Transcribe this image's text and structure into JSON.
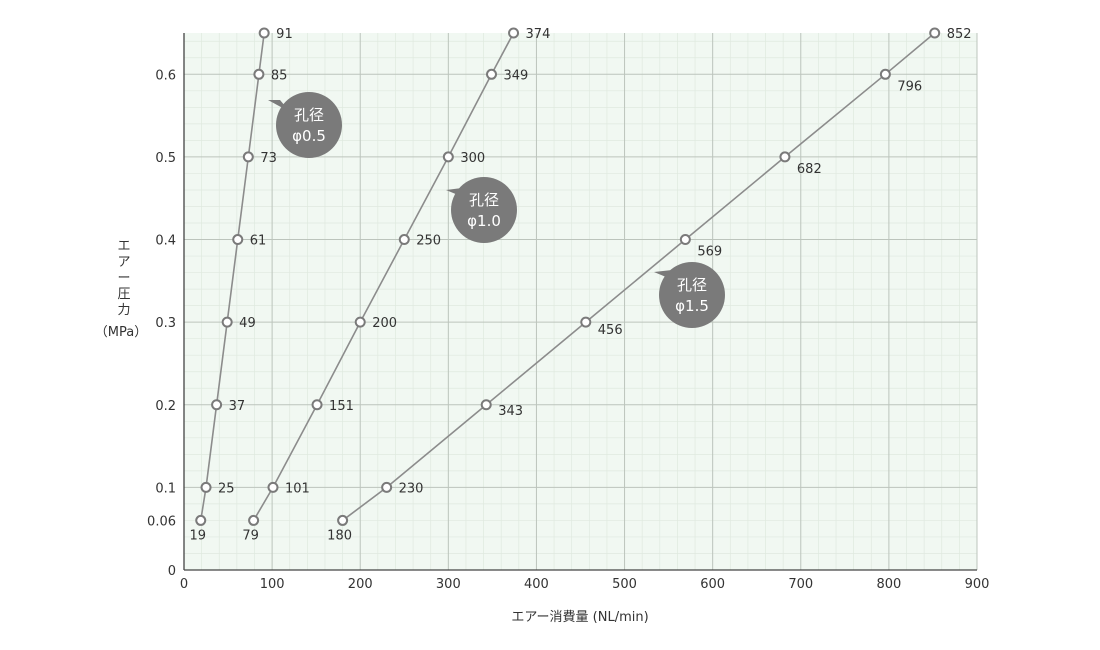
{
  "chart_data": {
    "type": "line",
    "xlabel": "エアー消費量 (NL/min)",
    "ylabel_main": "エアー圧力",
    "ylabel_unit": "（MPa）",
    "xlim": [
      0,
      900
    ],
    "ylim": [
      0,
      0.65
    ],
    "x_ticks": [
      0,
      100,
      200,
      300,
      400,
      500,
      600,
      700,
      800,
      900
    ],
    "y_ticks": [
      0,
      0.06,
      0.1,
      0.2,
      0.3,
      0.4,
      0.5,
      0.6
    ],
    "y_tick_labels": [
      "0",
      "0.06",
      "0.1",
      "0.2",
      "0.3",
      "0.4",
      "0.5",
      "0.6"
    ],
    "x_tick_labels": [
      "0",
      "100",
      "200",
      "300",
      "400",
      "500",
      "600",
      "700",
      "800",
      "900"
    ],
    "grid": true,
    "colors": {
      "line": "#8c8c8c",
      "marker_stroke": "#7a7a7a",
      "bubble": "#7a7a7a",
      "grid_major": "#bcc4bc",
      "grid_minor": "#dfe9df",
      "plot_bg": "#f1f8f2"
    },
    "series": [
      {
        "name": "孔径 φ0.5",
        "bubble_lines": [
          "孔径",
          "φ0.5"
        ],
        "y": [
          0.06,
          0.1,
          0.2,
          0.3,
          0.4,
          0.5,
          0.6,
          0.65
        ],
        "x": [
          19,
          25,
          37,
          49,
          61,
          73,
          85,
          91
        ],
        "labels": [
          "19",
          "25",
          "37",
          "49",
          "61",
          "73",
          "85",
          "91"
        ]
      },
      {
        "name": "孔径 φ1.0",
        "bubble_lines": [
          "孔径",
          "φ1.0"
        ],
        "y": [
          0.06,
          0.1,
          0.2,
          0.3,
          0.4,
          0.5,
          0.6,
          0.65
        ],
        "x": [
          79,
          101,
          151,
          200,
          250,
          300,
          349,
          374
        ],
        "labels": [
          "79",
          "101",
          "151",
          "200",
          "250",
          "300",
          "349",
          "374"
        ]
      },
      {
        "name": "孔径 φ1.5",
        "bubble_lines": [
          "孔径",
          "φ1.5"
        ],
        "y": [
          0.06,
          0.1,
          0.2,
          0.3,
          0.4,
          0.5,
          0.6,
          0.65
        ],
        "x": [
          180,
          230,
          343,
          456,
          569,
          682,
          796,
          852
        ],
        "labels": [
          "180",
          "230",
          "343",
          "456",
          "569",
          "682",
          "796",
          "852"
        ]
      }
    ]
  }
}
